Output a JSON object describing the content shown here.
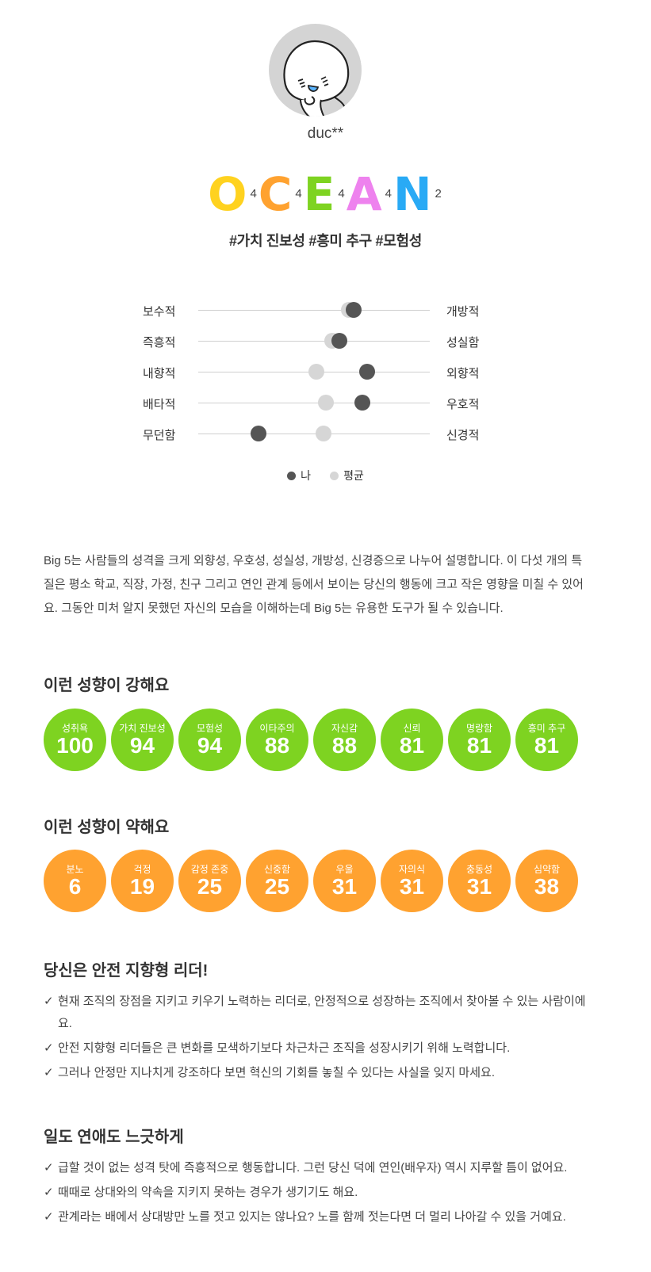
{
  "profile": {
    "username": "duc**",
    "avatar": "cartoon-character-avatar"
  },
  "ocean": [
    {
      "letter": "O",
      "score": "4",
      "color": "#ffd21f"
    },
    {
      "letter": "C",
      "score": "4",
      "color": "#ffa230"
    },
    {
      "letter": "E",
      "score": "4",
      "color": "#7ed321"
    },
    {
      "letter": "A",
      "score": "4",
      "color": "#ee82ee"
    },
    {
      "letter": "N",
      "score": "2",
      "color": "#29aaf5"
    }
  ],
  "tags": "#가치 진보성 #흥미 추구 #모험성",
  "traits": [
    {
      "left": "보수적",
      "right": "개방적",
      "me": 0.67,
      "avg": 0.65
    },
    {
      "left": "즉흥적",
      "right": "성실함",
      "me": 0.61,
      "avg": 0.58
    },
    {
      "left": "내향적",
      "right": "외향적",
      "me": 0.73,
      "avg": 0.51
    },
    {
      "left": "배타적",
      "right": "우호적",
      "me": 0.71,
      "avg": 0.55
    },
    {
      "left": "무던함",
      "right": "신경적",
      "me": 0.26,
      "avg": 0.54
    }
  ],
  "legend": {
    "me": "나",
    "avg": "평균",
    "me_color": "#555555",
    "avg_color": "#d6d6d6"
  },
  "description": "Big 5는 사람들의 성격을 크게 외향성, 우호성, 성실성, 개방성, 신경증으로 나누어 설명합니다. 이 다섯 개의 특질은 평소 학교, 직장, 가정, 친구 그리고 연인 관계 등에서 보이는 당신의 행동에 크고 작은 영향을 미칠 수 있어요. 그동안 미처 알지 못했던 자신의 모습을 이해하는데 Big 5는 유용한 도구가 될 수 있습니다.",
  "strong": {
    "title": "이런 성향이 강해요",
    "items": [
      {
        "label": "성취욕",
        "value": "100"
      },
      {
        "label": "가치 진보성",
        "value": "94"
      },
      {
        "label": "모험성",
        "value": "94"
      },
      {
        "label": "이타주의",
        "value": "88"
      },
      {
        "label": "자신감",
        "value": "88"
      },
      {
        "label": "신뢰",
        "value": "81"
      },
      {
        "label": "명랑함",
        "value": "81"
      },
      {
        "label": "흥미 추구",
        "value": "81"
      }
    ]
  },
  "weak": {
    "title": "이런 성향이 약해요",
    "items": [
      {
        "label": "분노",
        "value": "6"
      },
      {
        "label": "걱정",
        "value": "19"
      },
      {
        "label": "감정 존중",
        "value": "25"
      },
      {
        "label": "신중함",
        "value": "25"
      },
      {
        "label": "우울",
        "value": "31"
      },
      {
        "label": "자의식",
        "value": "31"
      },
      {
        "label": "충동성",
        "value": "31"
      },
      {
        "label": "심약함",
        "value": "38"
      }
    ]
  },
  "leader": {
    "title": "당신은 안전 지향형 리더!",
    "bullets": [
      "현재 조직의 장점을 지키고 키우기 노력하는 리더로, 안정적으로 성장하는 조직에서 찾아볼 수 있는 사람이에요.",
      "안전 지향형 리더들은 큰 변화를 모색하기보다 차근차근 조직을 성장시키기 위해 노력합니다.",
      "그러나 안정만 지나치게 강조하다 보면 혁신의 기회를 놓칠 수 있다는 사실을 잊지 마세요."
    ]
  },
  "love": {
    "title": "일도 연애도 느긋하게",
    "bullets": [
      "급할 것이 없는 성격 탓에 즉흥적으로 행동합니다. 그런 당신 덕에 연인(배우자) 역시 지루할 틈이 없어요.",
      "때때로 상대와의 약속을 지키지 못하는 경우가 생기기도 해요.",
      "관계라는 배에서 상대방만 노를 젓고 있지는 않나요? 노를 함께 젓는다면 더 멀리 나아갈 수 있을 거예요."
    ]
  },
  "check_symbol": "✓"
}
